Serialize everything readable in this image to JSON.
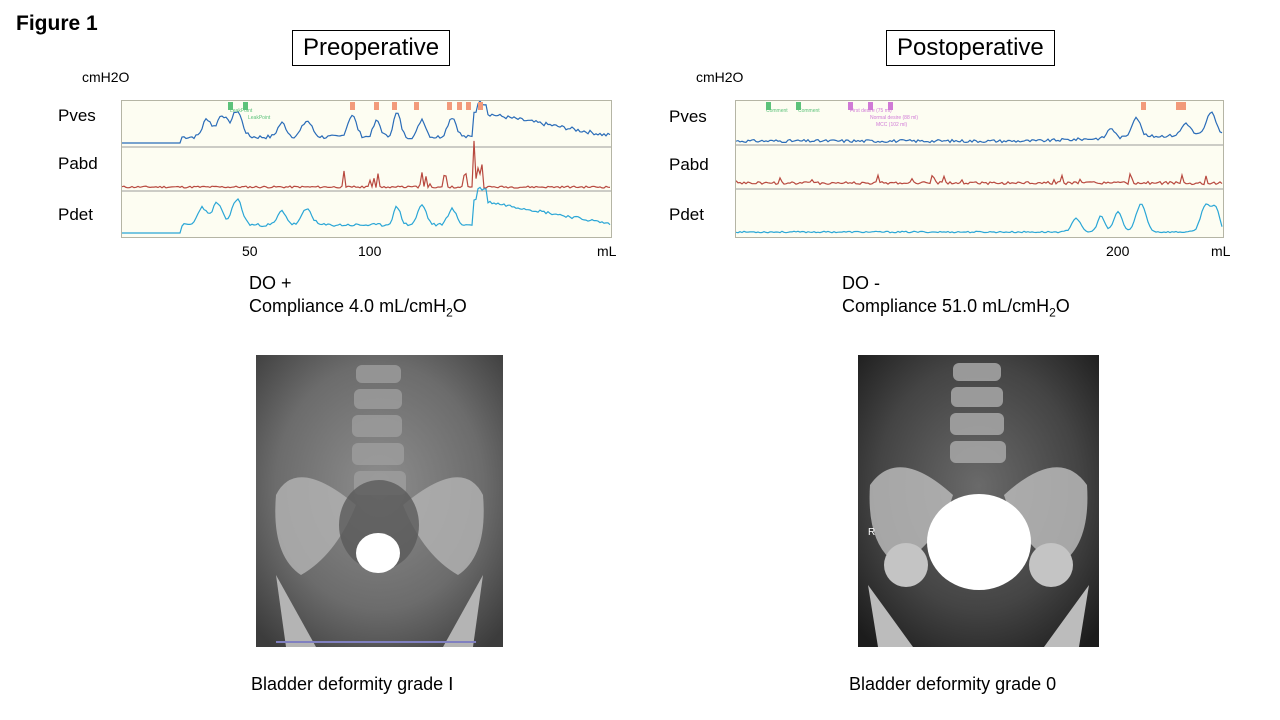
{
  "figure_title": "Figure 1",
  "panels": {
    "pre": {
      "title": "Preoperative",
      "unit_label": "cmH2O",
      "channels": [
        "Pves",
        "Pabd",
        "Pdet"
      ],
      "x_ticks": [
        "50",
        "100"
      ],
      "x_unit": "mL",
      "do_text": "DO +",
      "compliance_text": "Compliance  4.0 mL/cmH",
      "compliance_sub": "2",
      "compliance_end": "O",
      "caption": "Bladder deformity grade  Ⅰ",
      "trace_marks": [
        "LeakPoint",
        "LeakPoint"
      ]
    },
    "post": {
      "title": "Postoperative",
      "unit_label": "cmH2O",
      "channels": [
        "Pves",
        "Pabd",
        "Pdet"
      ],
      "x_ticks": [
        "200"
      ],
      "x_unit": "mL",
      "do_text": "DO -",
      "compliance_text": "Compliance  51.0 mL/cmH",
      "compliance_sub": "2",
      "compliance_end": "O",
      "caption": "Bladder deformity grade  0",
      "trace_marks": [
        "Comment",
        "Comment",
        "First desire (75 ml)",
        "Normal desire (88 ml)",
        "MCC (102 ml)"
      ],
      "xray_marker": "R"
    }
  },
  "colors": {
    "pves": "#2a6cb8",
    "pabd": "#b8493f",
    "pdet": "#2aa6d6",
    "marker_green": "#5cc27a",
    "marker_orange": "#f29a7a",
    "marker_pink": "#d07ad6"
  }
}
